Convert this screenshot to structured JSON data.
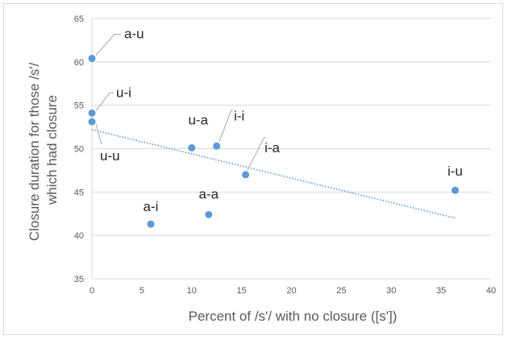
{
  "chart_data": {
    "type": "scatter",
    "title": "",
    "xlabel": "Percent of /s'/ with no closure ([s'])",
    "ylabel_lines": [
      "Closure duration for those /s'/",
      "which had closure"
    ],
    "xlim": [
      0,
      40
    ],
    "ylim": [
      35,
      65
    ],
    "x_ticks": [
      0,
      5,
      10,
      15,
      20,
      25,
      30,
      35,
      40
    ],
    "y_ticks": [
      35,
      40,
      45,
      50,
      55,
      60,
      65
    ],
    "grid": "horizontal",
    "points": [
      {
        "label": "a-u",
        "x": 0,
        "y": 60.4
      },
      {
        "label": "u-i",
        "x": 0,
        "y": 54.1
      },
      {
        "label": "u-u",
        "x": 0,
        "y": 53.1
      },
      {
        "label": "a-i",
        "x": 5.9,
        "y": 41.3
      },
      {
        "label": "u-a",
        "x": 10.0,
        "y": 50.1
      },
      {
        "label": "a-a",
        "x": 11.7,
        "y": 42.4
      },
      {
        "label": "i-i",
        "x": 12.5,
        "y": 50.3
      },
      {
        "label": "i-a",
        "x": 15.4,
        "y": 47.0
      },
      {
        "label": "i-u",
        "x": 36.4,
        "y": 45.2
      }
    ],
    "trendline": {
      "type": "linear",
      "x_start": 0,
      "y_start": 52.2,
      "x_end": 36.4,
      "y_end": 42.0
    },
    "colors": {
      "point": "#5b9bd5",
      "trendline": "#5b9bd5",
      "grid": "#d9d9d9",
      "leader": "#a6a6a6"
    }
  }
}
